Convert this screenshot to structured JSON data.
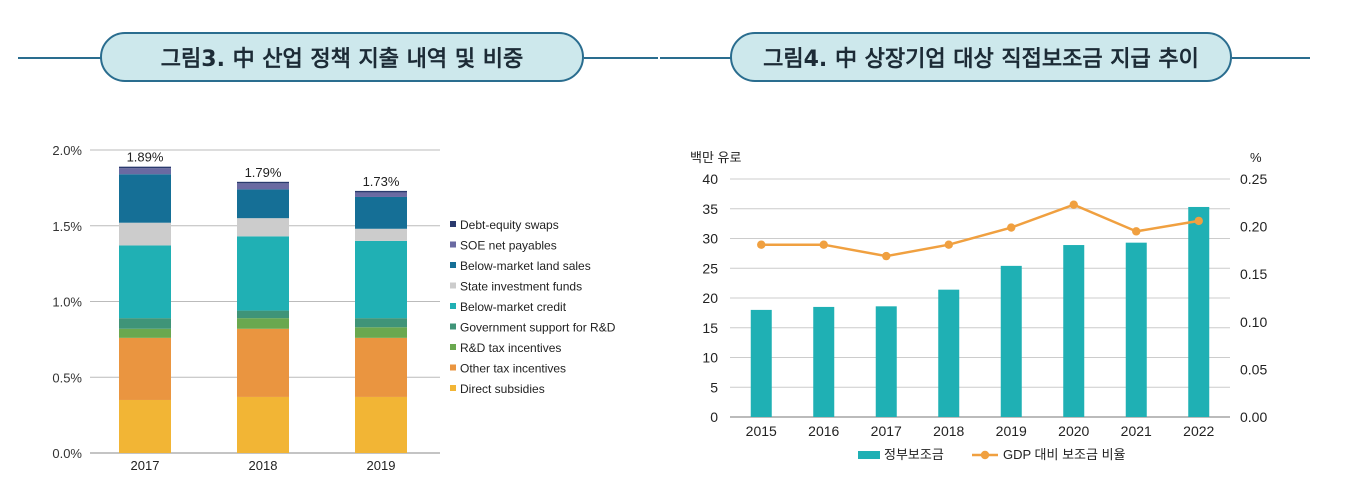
{
  "headers": {
    "left_title": "그림3. 中 산업 정책 지출 내역 및 비중",
    "right_title": "그림4. 中 상장기업 대상 직접보조금 지급 추이"
  },
  "chart_data": [
    {
      "type": "bar",
      "stacked": true,
      "categories": [
        "2017",
        "2018",
        "2019"
      ],
      "ylim": [
        0,
        2.0
      ],
      "y_ticks": [
        "0.0%",
        "0.5%",
        "1.0%",
        "1.5%",
        "2.0%"
      ],
      "total_labels": [
        "1.89%",
        "1.79%",
        "1.73%"
      ],
      "series": [
        {
          "name": "Direct subsidies",
          "color": "#f2b535",
          "values": [
            0.35,
            0.37,
            0.37
          ]
        },
        {
          "name": "Other tax incentives",
          "color": "#ea9540",
          "values": [
            0.41,
            0.45,
            0.39
          ]
        },
        {
          "name": "R&D tax incentives",
          "color": "#6aa84f",
          "values": [
            0.06,
            0.07,
            0.07
          ]
        },
        {
          "name": "Government support for R&D",
          "color": "#3f9478",
          "values": [
            0.07,
            0.05,
            0.06
          ]
        },
        {
          "name": "Below-market credit",
          "color": "#20b0b4",
          "values": [
            0.48,
            0.49,
            0.51
          ]
        },
        {
          "name": "State investment funds",
          "color": "#cccccc",
          "values": [
            0.15,
            0.12,
            0.08
          ]
        },
        {
          "name": "Below-market land sales",
          "color": "#156f96",
          "values": [
            0.32,
            0.19,
            0.21
          ]
        },
        {
          "name": "SOE net payables",
          "color": "#6a6aa2",
          "values": [
            0.04,
            0.04,
            0.03
          ]
        },
        {
          "name": "Debt-equity swaps",
          "color": "#2a3a6e",
          "values": [
            0.01,
            0.01,
            0.01
          ]
        }
      ],
      "legend_order": [
        "Debt-equity swaps",
        "SOE net payables",
        "Below-market land sales",
        "State investment funds",
        "Below-market credit",
        "Government support for R&D",
        "R&D tax incentives",
        "Other tax incentives",
        "Direct subsidies"
      ]
    },
    {
      "type": "bar",
      "combo": "bar+line",
      "categories": [
        "2015",
        "2016",
        "2017",
        "2018",
        "2019",
        "2020",
        "2021",
        "2022"
      ],
      "y_left_label": "백만 유로",
      "y_right_label": "%",
      "ylim_left": [
        0,
        40
      ],
      "ylim_right": [
        0,
        0.25
      ],
      "y_left_ticks": [
        "0",
        "5",
        "10",
        "15",
        "20",
        "25",
        "30",
        "35",
        "40"
      ],
      "y_right_ticks": [
        "0.00",
        "0.05",
        "0.10",
        "0.15",
        "0.20",
        "0.25"
      ],
      "series": [
        {
          "name": "정부보조금",
          "type": "bar",
          "axis": "left",
          "color": "#1fb0b4",
          "values": [
            18.0,
            18.5,
            18.6,
            21.4,
            25.4,
            28.9,
            29.3,
            35.3
          ]
        },
        {
          "name": "GDP 대비 보조금 비율",
          "type": "line",
          "axis": "right",
          "color": "#f0a040",
          "values": [
            0.181,
            0.181,
            0.169,
            0.181,
            0.199,
            0.223,
            0.195,
            0.206
          ]
        }
      ]
    }
  ]
}
